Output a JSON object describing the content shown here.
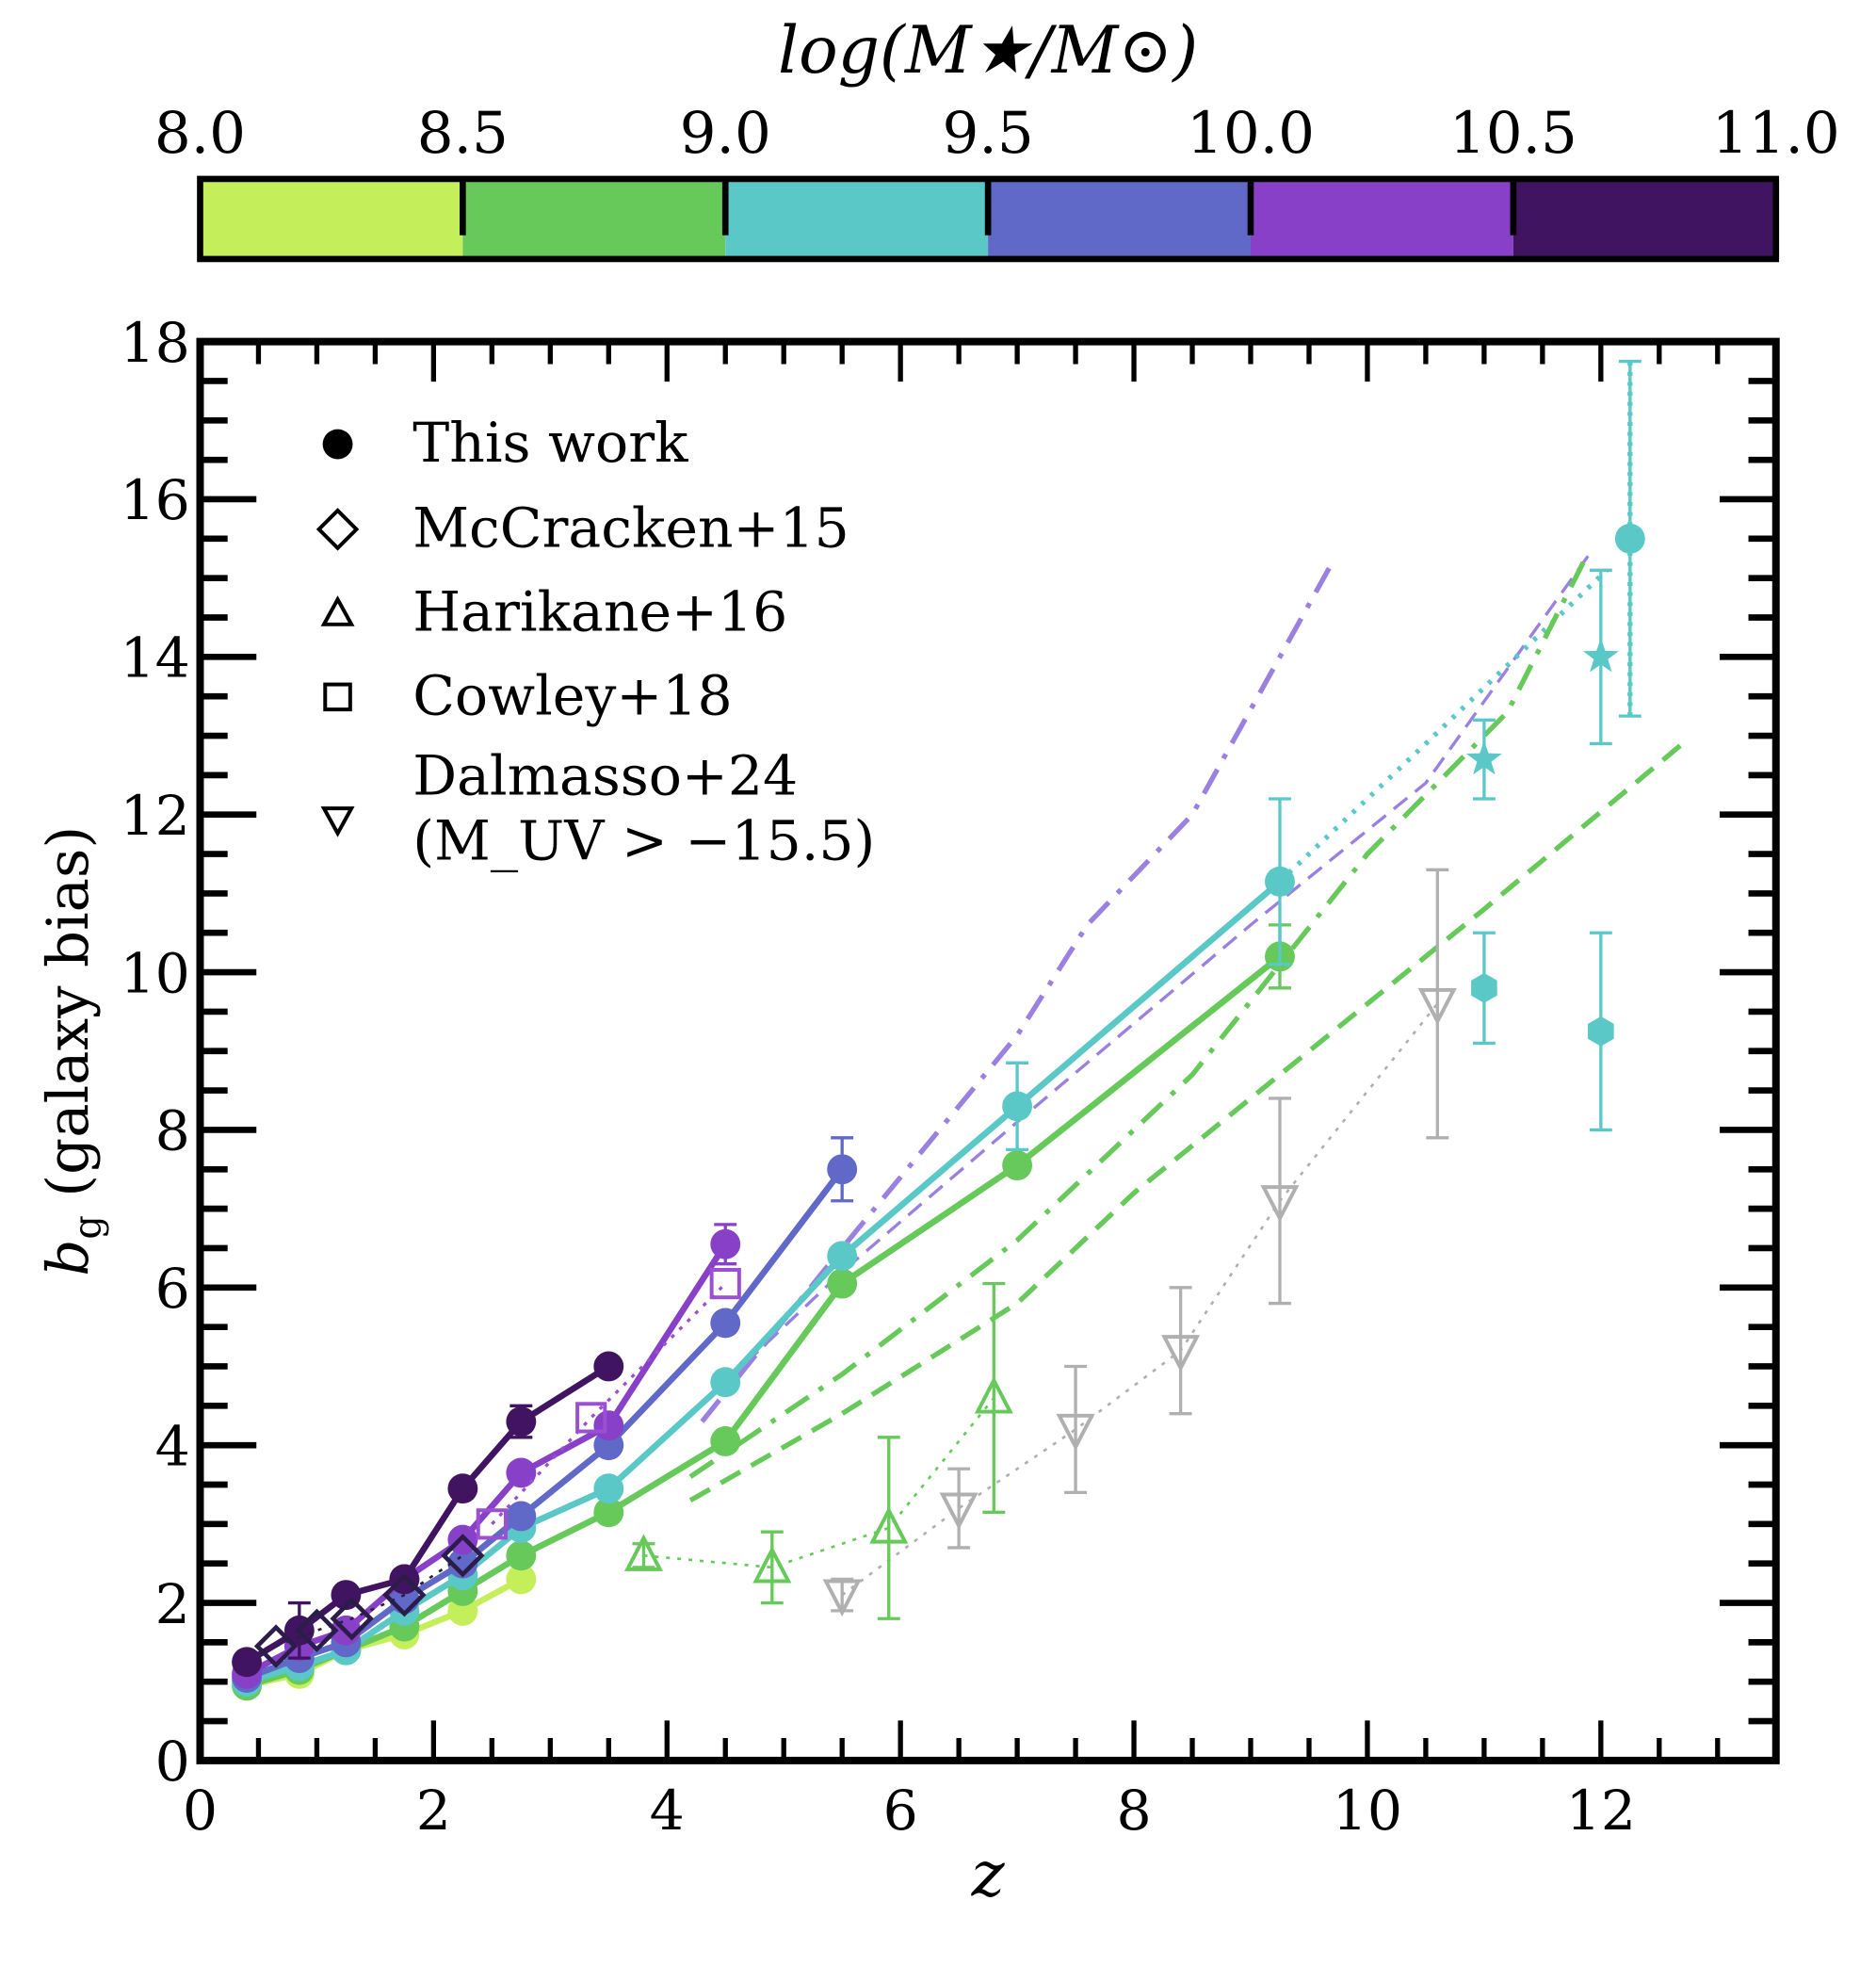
{
  "chart_data": {
    "type": "scatter",
    "xlabel": "z",
    "ylabel": "b_g (galaxy bias)",
    "ylabel_main": "b",
    "ylabel_sub": "g",
    "ylabel_rest": " (galaxy bias)",
    "xlim": [
      0,
      13.5
    ],
    "ylim": [
      0,
      18
    ],
    "xticks": [
      "0",
      "2",
      "4",
      "6",
      "8",
      "10",
      "12"
    ],
    "yticks": [
      "0",
      "2",
      "4",
      "6",
      "8",
      "10",
      "12",
      "14",
      "16",
      "18"
    ],
    "grid": false,
    "legend_placement": "top-left",
    "colorbar": {
      "title": "log(M★/M⊙)",
      "ticks": [
        "8.0",
        "8.5",
        "9.0",
        "9.5",
        "10.0",
        "10.5",
        "11.0"
      ],
      "colors": [
        "#c5ef5a",
        "#66c95a",
        "#5bc8c8",
        "#6068c8",
        "#8840c8",
        "#401460"
      ]
    },
    "legend": [
      {
        "marker": "filled-circle",
        "label": "This work"
      },
      {
        "marker": "open-diamond",
        "label": "McCracken+15"
      },
      {
        "marker": "open-triangle-up",
        "label": "Harikane+16"
      },
      {
        "marker": "open-square",
        "label": "Cowley+18"
      },
      {
        "marker": "open-triangle-down",
        "label": "Dalmasso+24",
        "label2": "(M_UV > −15.5)"
      }
    ],
    "this_work": [
      {
        "bin": "8.0-8.5",
        "color": "#c5ef5a",
        "z": [
          0.4,
          0.85,
          1.25,
          1.75,
          2.25,
          2.75
        ],
        "b": [
          0.95,
          1.1,
          1.4,
          1.6,
          1.9,
          2.3
        ]
      },
      {
        "bin": "8.5-9.0",
        "color": "#66c95a",
        "z": [
          0.4,
          0.85,
          1.25,
          1.75,
          2.25,
          2.75,
          3.5,
          4.5,
          5.5,
          7.0,
          9.25
        ],
        "b": [
          0.95,
          1.15,
          1.4,
          1.7,
          2.15,
          2.6,
          3.15,
          4.05,
          6.05,
          7.55,
          10.2
        ],
        "yerr": [
          0,
          0,
          0,
          0,
          0,
          0,
          0,
          0,
          0,
          0,
          0.4
        ]
      },
      {
        "bin": "9.0-9.5",
        "color": "#5bc8c8",
        "z": [
          0.4,
          0.85,
          1.25,
          1.75,
          2.25,
          2.75,
          3.5,
          4.5,
          5.5,
          7.0,
          9.25,
          12.25
        ],
        "b": [
          1.0,
          1.2,
          1.4,
          1.9,
          2.35,
          2.95,
          3.45,
          4.8,
          6.4,
          8.3,
          11.15,
          15.5
        ],
        "yerr": [
          0,
          0,
          0,
          0,
          0,
          0,
          0,
          0,
          0,
          0.55,
          1.05,
          2.25
        ],
        "dotted_last": true
      },
      {
        "bin": "9.5-10.0",
        "color": "#6068c8",
        "z": [
          0.4,
          0.85,
          1.25,
          1.75,
          2.25,
          2.75,
          3.5,
          4.5,
          5.5
        ],
        "b": [
          1.05,
          1.3,
          1.5,
          2.05,
          2.5,
          3.1,
          4.0,
          5.55,
          7.5
        ],
        "yerr": [
          0,
          0,
          0,
          0,
          0,
          0,
          0,
          0,
          0.4
        ]
      },
      {
        "bin": "10.0-10.5",
        "color": "#8840c8",
        "z": [
          0.4,
          0.85,
          1.25,
          1.75,
          2.25,
          2.75,
          3.5,
          4.5
        ],
        "b": [
          1.1,
          1.45,
          1.65,
          2.3,
          2.8,
          3.65,
          4.25,
          6.55
        ],
        "yerr": [
          0,
          0,
          0,
          0,
          0,
          0,
          0,
          0.25
        ]
      },
      {
        "bin": "10.5-11.0",
        "color": "#401460",
        "z": [
          0.4,
          0.85,
          1.25,
          1.75,
          2.25,
          2.75,
          3.5
        ],
        "b": [
          1.25,
          1.65,
          2.1,
          2.3,
          3.45,
          4.3,
          5.0
        ],
        "yerr": [
          0,
          0.35,
          0,
          0,
          0,
          0.2,
          0
        ]
      }
    ],
    "stars": {
      "color": "#5bc8c8",
      "z": [
        11.0,
        12.0
      ],
      "b": [
        12.7,
        14.0
      ],
      "yerr": [
        0.5,
        1.1
      ]
    },
    "hexagons": {
      "color": "#5bc8c8",
      "z": [
        11.0,
        12.0
      ],
      "b": [
        9.8,
        9.25
      ],
      "yerr": [
        0.7,
        1.25
      ]
    },
    "mccracken15": {
      "color": "#2a1d4a",
      "z": [
        0.65,
        1.0,
        1.3,
        1.75,
        2.25
      ],
      "b": [
        1.45,
        1.65,
        1.8,
        2.1,
        2.6
      ]
    },
    "cowley18": {
      "color": "#9a50d0",
      "z": [
        2.5,
        3.35,
        4.5
      ],
      "b": [
        3.0,
        4.35,
        6.05
      ]
    },
    "harikane16": {
      "color": "#66c95a",
      "z": [
        3.8,
        4.9,
        5.9,
        6.8
      ],
      "b": [
        2.6,
        2.45,
        2.95,
        4.6
      ],
      "yerr": [
        0.15,
        0.45,
        1.15,
        1.45
      ]
    },
    "dalmasso24": {
      "color": "#b0b0b0",
      "z": [
        5.5,
        6.5,
        7.5,
        8.4,
        9.25,
        10.6
      ],
      "b": [
        2.1,
        3.2,
        4.2,
        5.2,
        7.1,
        9.6
      ],
      "yerr": [
        0.2,
        0.5,
        0.8,
        0.8,
        1.3,
        1.7
      ]
    },
    "model_lines": [
      {
        "color": "#9a80e0",
        "style": "dashdot",
        "z": [
          4.3,
          5.5,
          7.0,
          7.6,
          8.5,
          9.7
        ],
        "b": [
          4.3,
          6.5,
          9.2,
          10.6,
          12.0,
          15.2
        ]
      },
      {
        "color": "#9a80e0",
        "style": "dashed-thin",
        "z": [
          4.5,
          5.5,
          7.0,
          9.0,
          10.5,
          11.9
        ],
        "b": [
          4.8,
          6.2,
          8.1,
          10.6,
          12.4,
          15.3
        ]
      },
      {
        "color": "#5bc8c8",
        "style": "dotted",
        "z": [
          9.25,
          10.5,
          12.05
        ],
        "b": [
          11.15,
          12.9,
          15.1
        ]
      },
      {
        "color": "#66c95a",
        "style": "dashdot",
        "z": [
          4.2,
          5.5,
          7.0,
          8.5,
          10.0,
          11.2,
          11.85
        ],
        "b": [
          3.6,
          4.9,
          6.6,
          8.7,
          11.5,
          13.3,
          15.2
        ]
      },
      {
        "color": "#66c95a",
        "style": "dashed",
        "z": [
          4.2,
          5.5,
          7.0,
          8.0,
          9.5,
          11.0,
          12.7
        ],
        "b": [
          3.3,
          4.4,
          5.8,
          7.2,
          9.0,
          10.8,
          12.9
        ]
      }
    ]
  }
}
